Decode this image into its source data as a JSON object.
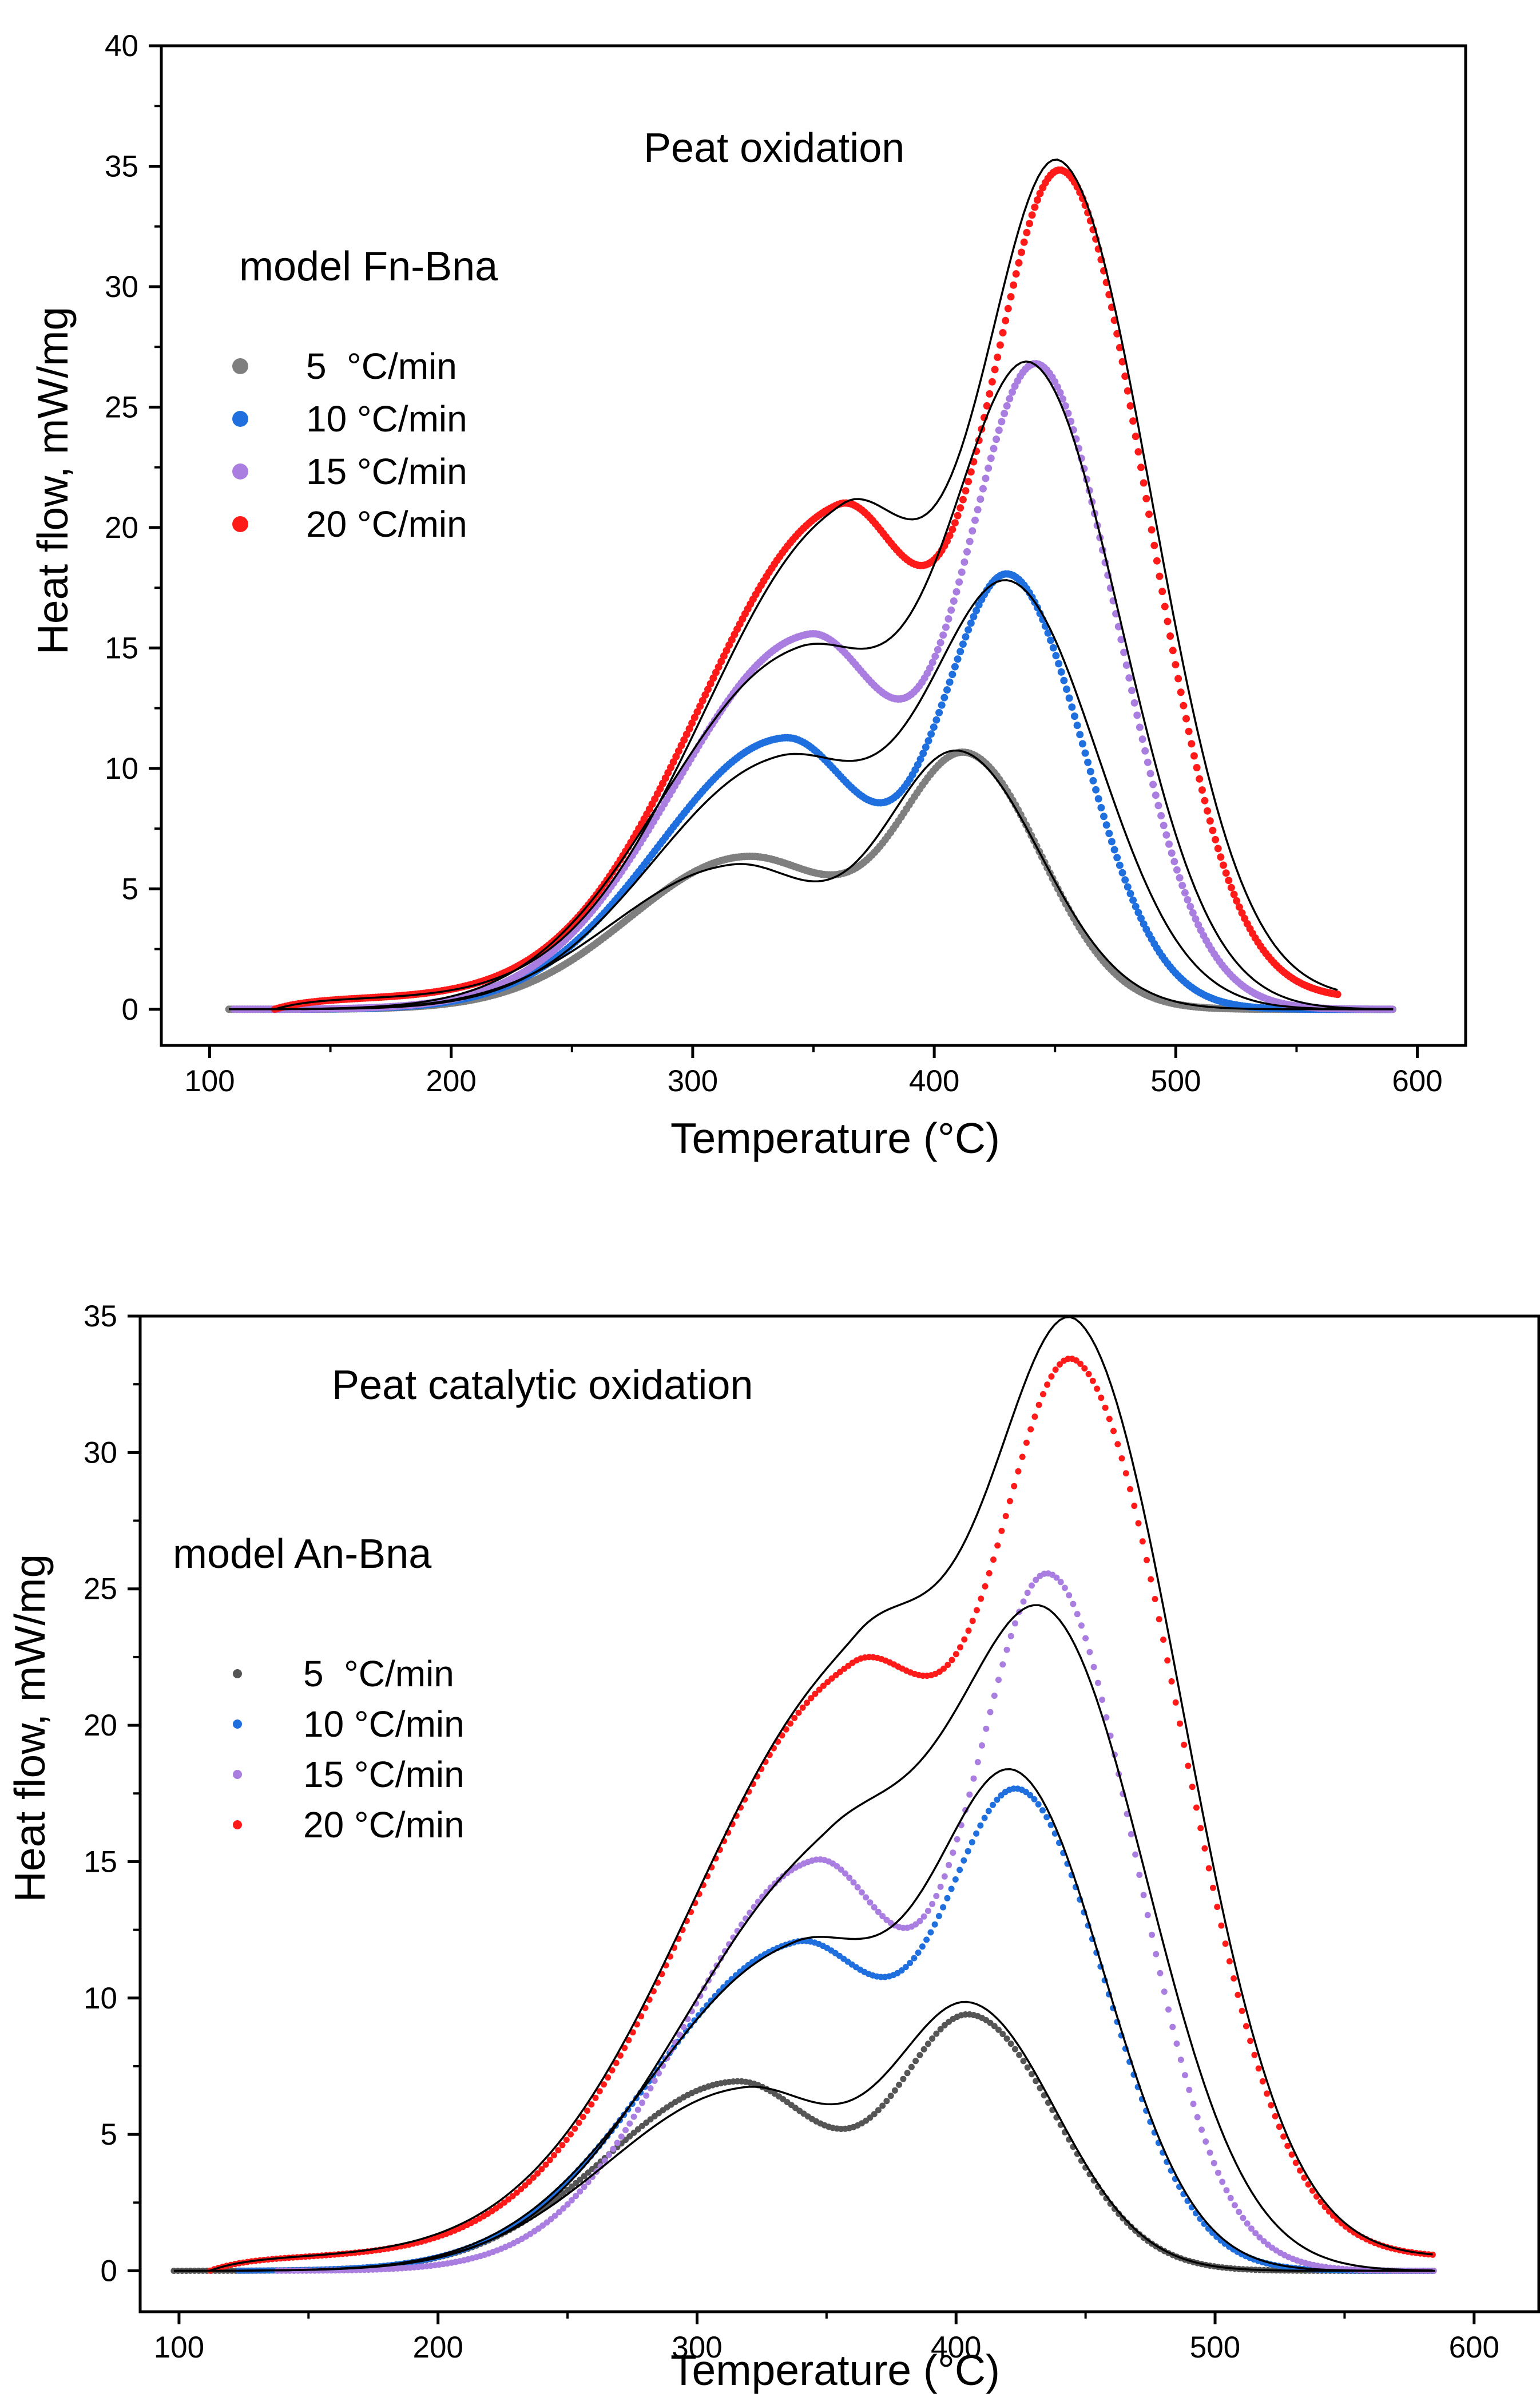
{
  "chart_data": [
    {
      "type": "scatter",
      "title": "Peat oxidation",
      "subtitle": "model Fn-Bna",
      "xlabel": "Temperature (°C)",
      "ylabel": "Heat flow, mW/mg",
      "xlim": [
        80,
        620
      ],
      "ylim": [
        -1.5,
        40
      ],
      "xticks": [
        100,
        200,
        300,
        400,
        500,
        600
      ],
      "yticks": [
        0,
        5,
        10,
        15,
        20,
        25,
        30,
        35,
        40
      ],
      "legend_position": "upper-left",
      "fit_color": "#000000",
      "series": [
        {
          "name": "5  °C/min",
          "color": "#7f7f7f",
          "start": 108,
          "end": 590,
          "base": 0.0,
          "peaks": [
            {
              "c": 322,
              "h": 6.3,
              "wl": 48,
              "wr": 40
            },
            {
              "c": 414,
              "h": 10.2,
              "wl": 28,
              "wr": 31
            }
          ],
          "fit_peaks": [
            {
              "c": 317,
              "h": 5.9,
              "wl": 50,
              "wr": 34
            },
            {
              "c": 410,
              "h": 10.6,
              "wl": 31,
              "wr": 34
            }
          ]
        },
        {
          "name": "10 °C/min",
          "color": "#1f6fdf",
          "start": 138,
          "end": 590,
          "base": 0.0,
          "peaks": [
            {
              "c": 338,
              "h": 11.2,
              "wl": 52,
              "wr": 34
            },
            {
              "c": 431,
              "h": 17.8,
              "wl": 28,
              "wr": 31
            }
          ],
          "fit_peaks": [
            {
              "c": 336,
              "h": 10.2,
              "wl": 52,
              "wr": 40
            },
            {
              "c": 432,
              "h": 17.2,
              "wl": 34,
              "wr": 36
            }
          ]
        },
        {
          "name": "15 °C/min",
          "color": "#a97ee0",
          "start": 110,
          "end": 590,
          "base": 0.0,
          "peaks": [
            {
              "c": 348,
              "h": 15.4,
              "wl": 55,
              "wr": 35
            },
            {
              "c": 443,
              "h": 26.4,
              "wl": 30,
              "wr": 33
            }
          ],
          "fit_peaks": [
            {
              "c": 344,
              "h": 14.6,
              "wl": 56,
              "wr": 42
            },
            {
              "c": 441,
              "h": 25.8,
              "wl": 34,
              "wr": 37
            }
          ]
        },
        {
          "name": "20 °C/min",
          "color": "#ff1a1a",
          "start": 127,
          "end": 568,
          "base": 0.45,
          "peaks": [
            {
              "c": 360,
              "h": 20.0,
              "wl": 57,
              "wr": 33
            },
            {
              "c": 453,
              "h": 34.0,
              "wl": 32,
              "wr": 35
            }
          ],
          "fit_peaks": [
            {
              "c": 362,
              "h": 19.7,
              "wl": 57,
              "wr": 34
            },
            {
              "c": 452,
              "h": 34.2,
              "wl": 33,
              "wr": 38
            }
          ]
        }
      ]
    },
    {
      "type": "scatter",
      "title": "Peat catalytic oxidation",
      "subtitle": "model An-Bna",
      "xlabel": "Temperature (°C)",
      "ylabel": "Heat flow, mW/mg",
      "xlim": [
        85,
        625
      ],
      "ylim": [
        -1.5,
        35
      ],
      "xticks": [
        100,
        200,
        300,
        400,
        500,
        600
      ],
      "yticks": [
        0,
        5,
        10,
        15,
        20,
        25,
        30,
        35
      ],
      "legend_position": "upper-left",
      "fit_color": "#000000",
      "series": [
        {
          "name": "5  °C/min",
          "color": "#555555",
          "start": 98,
          "end": 585,
          "base": 0.0,
          "peaks": [
            {
              "c": 315,
              "h": 6.9,
              "wl": 50,
              "wr": 34
            },
            {
              "c": 406,
              "h": 9.2,
              "wl": 28,
              "wr": 33
            }
          ],
          "fit_peaks": [
            {
              "c": 318,
              "h": 6.6,
              "wl": 52,
              "wr": 36
            },
            {
              "c": 406,
              "h": 9.5,
              "wl": 30,
              "wr": 33
            }
          ]
        },
        {
          "name": "10 °C/min",
          "color": "#1f6fdf",
          "start": 123,
          "end": 585,
          "base": 0.0,
          "peaks": [
            {
              "c": 338,
              "h": 11.8,
              "wl": 55,
              "wr": 34
            },
            {
              "c": 425,
              "h": 17.2,
              "wl": 30,
              "wr": 33
            }
          ],
          "fit_peaks": [
            {
              "c": 338,
              "h": 11.6,
              "wl": 56,
              "wr": 38
            },
            {
              "c": 424,
              "h": 17.4,
              "wl": 32,
              "wr": 34
            }
          ]
        },
        {
          "name": "15 °C/min",
          "color": "#a97ee0",
          "start": 138,
          "end": 585,
          "base": 0.0,
          "peaks": [
            {
              "c": 345,
              "h": 14.8,
              "wl": 50,
              "wr": 32
            },
            {
              "c": 436,
              "h": 25.3,
              "wl": 30,
              "wr": 33
            }
          ],
          "fit_peaks": [
            {
              "c": 352,
              "h": 14.9,
              "wl": 58,
              "wr": 40
            },
            {
              "c": 437,
              "h": 22.6,
              "wl": 36,
              "wr": 38
            }
          ]
        },
        {
          "name": "20 °C/min",
          "color": "#ff1a1a",
          "start": 112,
          "end": 585,
          "base": 0.5,
          "peaks": [
            {
              "c": 360,
              "h": 21.0,
              "wl": 62,
              "wr": 36
            },
            {
              "c": 447,
              "h": 31.7,
              "wl": 32,
              "wr": 40
            }
          ],
          "fit_peaks": [
            {
              "c": 362,
              "h": 21.3,
              "wl": 64,
              "wr": 38
            },
            {
              "c": 448,
              "h": 32.6,
              "wl": 35,
              "wr": 40
            }
          ]
        }
      ]
    }
  ]
}
